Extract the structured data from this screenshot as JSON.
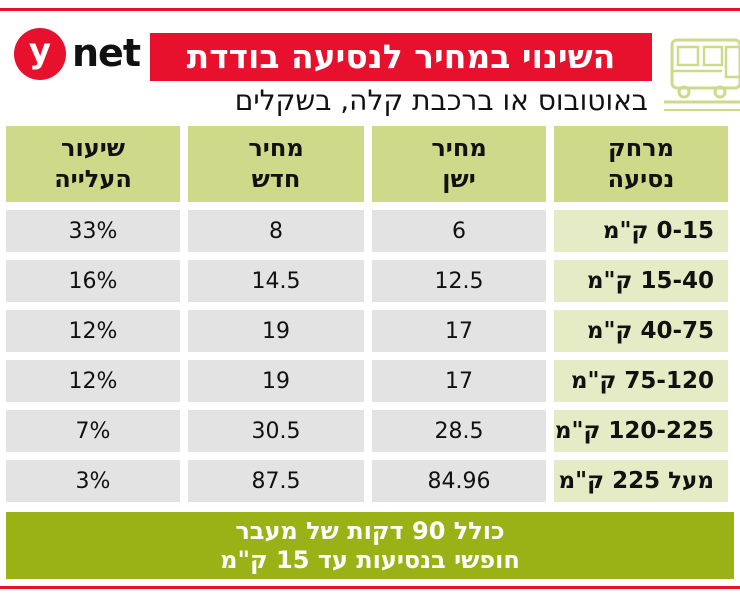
{
  "logo": {
    "letter": "y",
    "text": "net"
  },
  "title": "השינוי במחיר לנסיעה בודדת",
  "subtitle": "באוטובוס או ברכבת קלה, בשקלים",
  "icons": {
    "vehicle": "bus-icon"
  },
  "colors": {
    "accent_red": "#e8112d",
    "header_green": "#cfd98a",
    "footer_green": "#9bb216"
  },
  "table": {
    "headers": {
      "distance": [
        "מרחק",
        "נסיעה"
      ],
      "old_price": [
        "מחיר",
        "ישן"
      ],
      "new_price": [
        "מחיר",
        "חדש"
      ],
      "increase": [
        "שיעור",
        "העלייה"
      ]
    },
    "rows": [
      {
        "distance": "0-15 ק\"מ",
        "old_price": "6",
        "new_price": "8",
        "increase": "33%"
      },
      {
        "distance": "15-40 ק\"מ",
        "old_price": "12.5",
        "new_price": "14.5",
        "increase": "16%"
      },
      {
        "distance": "40-75 ק\"מ",
        "old_price": "17",
        "new_price": "19",
        "increase": "12%"
      },
      {
        "distance": "75-120 ק\"מ",
        "old_price": "17",
        "new_price": "19",
        "increase": "12%"
      },
      {
        "distance": "120-225 ק\"מ",
        "old_price": "28.5",
        "new_price": "30.5",
        "increase": "7%"
      },
      {
        "distance": "מעל 225 ק\"מ",
        "old_price": "84.96",
        "new_price": "87.5",
        "increase": "3%"
      }
    ]
  },
  "footer": {
    "line1": "כולל 90 דקות של מעבר",
    "line2": "חופשי בנסיעות עד 15 ק\"מ"
  }
}
